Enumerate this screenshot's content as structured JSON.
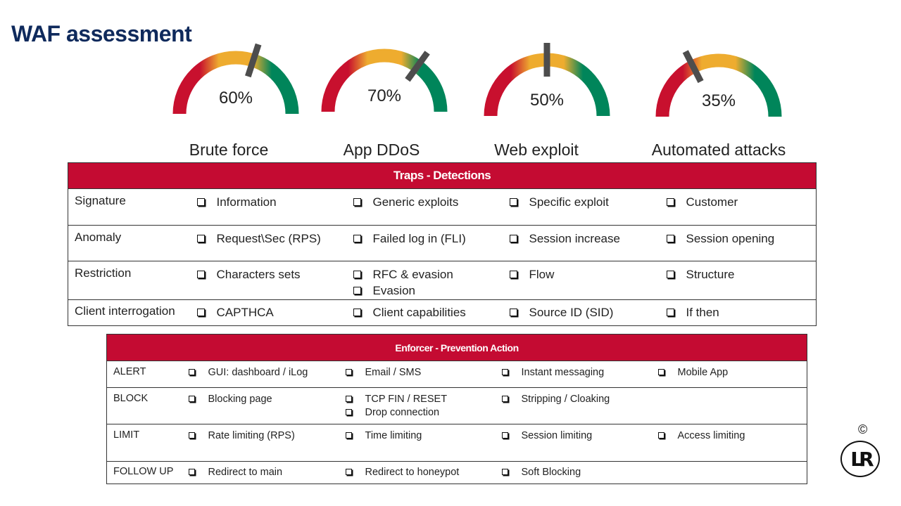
{
  "title": "WAF assessment",
  "gauges": [
    {
      "percent_label": "60%",
      "value": 0.6,
      "label": "Brute force"
    },
    {
      "percent_label": "70%",
      "value": 0.7,
      "label": "App DDoS"
    },
    {
      "percent_label": "50%",
      "value": 0.5,
      "label": "Web exploit"
    },
    {
      "percent_label": "35%",
      "value": 0.35,
      "label": "Automated attacks"
    }
  ],
  "gauge_colors": {
    "low": "#c8102e",
    "mid": "#eeac2f",
    "high": "#00855a",
    "needle": "#4d4d4d"
  },
  "traps": {
    "header": "Traps - Detections",
    "rows": [
      {
        "label": "Signature",
        "cells": [
          [
            "Information"
          ],
          [
            "Generic exploits"
          ],
          [
            "Specific exploit"
          ],
          [
            "Customer"
          ]
        ]
      },
      {
        "label": "Anomaly",
        "cells": [
          [
            "Request\\Sec  (RPS)"
          ],
          [
            "Failed log in (FLI)"
          ],
          [
            "Session increase"
          ],
          [
            "Session opening"
          ]
        ]
      },
      {
        "label": "Restriction",
        "cells": [
          [
            "Characters  sets"
          ],
          [
            "RFC & evasion",
            "Evasion"
          ],
          [
            "Flow"
          ],
          [
            "Structure"
          ]
        ]
      },
      {
        "label": "Client interrogation",
        "cells": [
          [
            "CAPTHCA"
          ],
          [
            "Client capabilities"
          ],
          [
            "Source ID (SID)"
          ],
          [
            "If then"
          ]
        ]
      }
    ]
  },
  "enforcer": {
    "header": "Enforcer - Prevention Action",
    "rows": [
      {
        "label": "ALERT",
        "cells": [
          [
            "GUI: dashboard / iLog"
          ],
          [
            "Email / SMS"
          ],
          [
            "Instant messaging"
          ],
          [
            "Mobile App"
          ]
        ]
      },
      {
        "label": "BLOCK",
        "cells": [
          [
            "Blocking page"
          ],
          [
            "TCP FIN  / RESET",
            "Drop connection"
          ],
          [
            "Stripping / Cloaking"
          ],
          []
        ]
      },
      {
        "label": "LIMIT",
        "cells": [
          [
            "Rate limiting (RPS)"
          ],
          [
            "Time limiting"
          ],
          [
            "Session limiting"
          ],
          [
            "Access  limiting"
          ]
        ]
      },
      {
        "label": "FOLLOW UP",
        "cells": [
          [
            "Redirect to main"
          ],
          [
            "Redirect to honeypot"
          ],
          [
            "Soft Blocking"
          ],
          []
        ]
      }
    ]
  },
  "copyright": "©",
  "logo_text": "LR"
}
